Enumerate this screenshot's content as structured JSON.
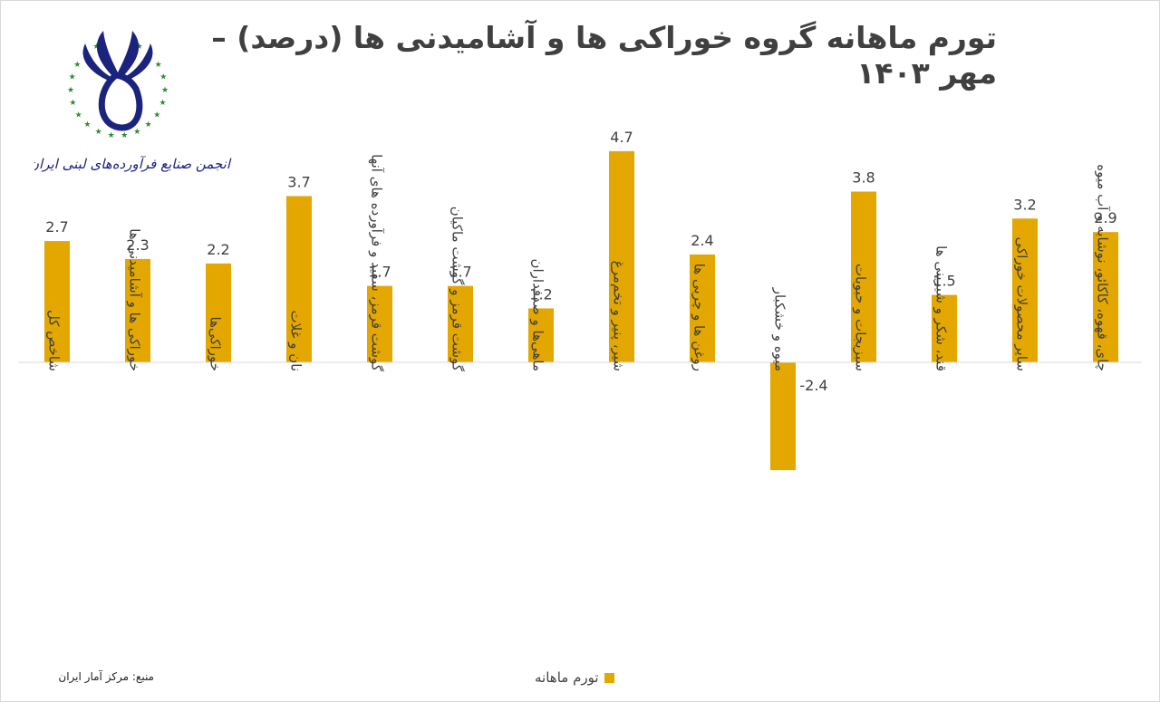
{
  "chart_data": {
    "type": "bar",
    "title": "تورم ماهانه گروه خوراکی ها و آشامیدنی ها (درصد) – مهر ۱۴۰۳",
    "categories": [
      "شاخص کل",
      "خوراکی ها و آشامیدنی ها",
      "خوراکی‌ها",
      "نان و غلات",
      "گوشت قرمز، سفید و فرآورده های آنها",
      "گوشت قرمز و گوشت ماکیان",
      "ماهی‌ها و صدفداران",
      "شیر، پنیر و تخم‌مرغ",
      "روغن ها و چربی ها",
      "میوه و خشکبار",
      "سبزیجات و حبوبات",
      "قند، شکر و شیرینی ها",
      "سایر محصولات خوراکی",
      "چای، قهوه، کاکائو، نوشابه و آب میوه"
    ],
    "series": [
      {
        "name": "تورم ماهانه",
        "values": [
          2.7,
          2.3,
          2.2,
          3.7,
          1.7,
          1.7,
          1.2,
          4.7,
          2.4,
          -2.4,
          3.8,
          1.5,
          3.2,
          2.9
        ]
      }
    ],
    "value_labels": [
      "2.7",
      "2.3",
      "2.2",
      "3.7",
      "1.7",
      "1.7",
      "1.2",
      "4.7",
      "2.4",
      "-2.4",
      "3.8",
      "1.5",
      "3.2",
      "2.9"
    ],
    "bar_color": "#E3A700",
    "grid": false,
    "legend_position": "bottom"
  },
  "logo": {
    "text": "انجمن صنایع فرآورده‌های لبنی ایران",
    "primary_color": "#1a237e",
    "star_color": "#2e8b2e"
  },
  "legend": {
    "label": "تورم ماهانه"
  },
  "source": "منبع: مرکز آمار ایران"
}
